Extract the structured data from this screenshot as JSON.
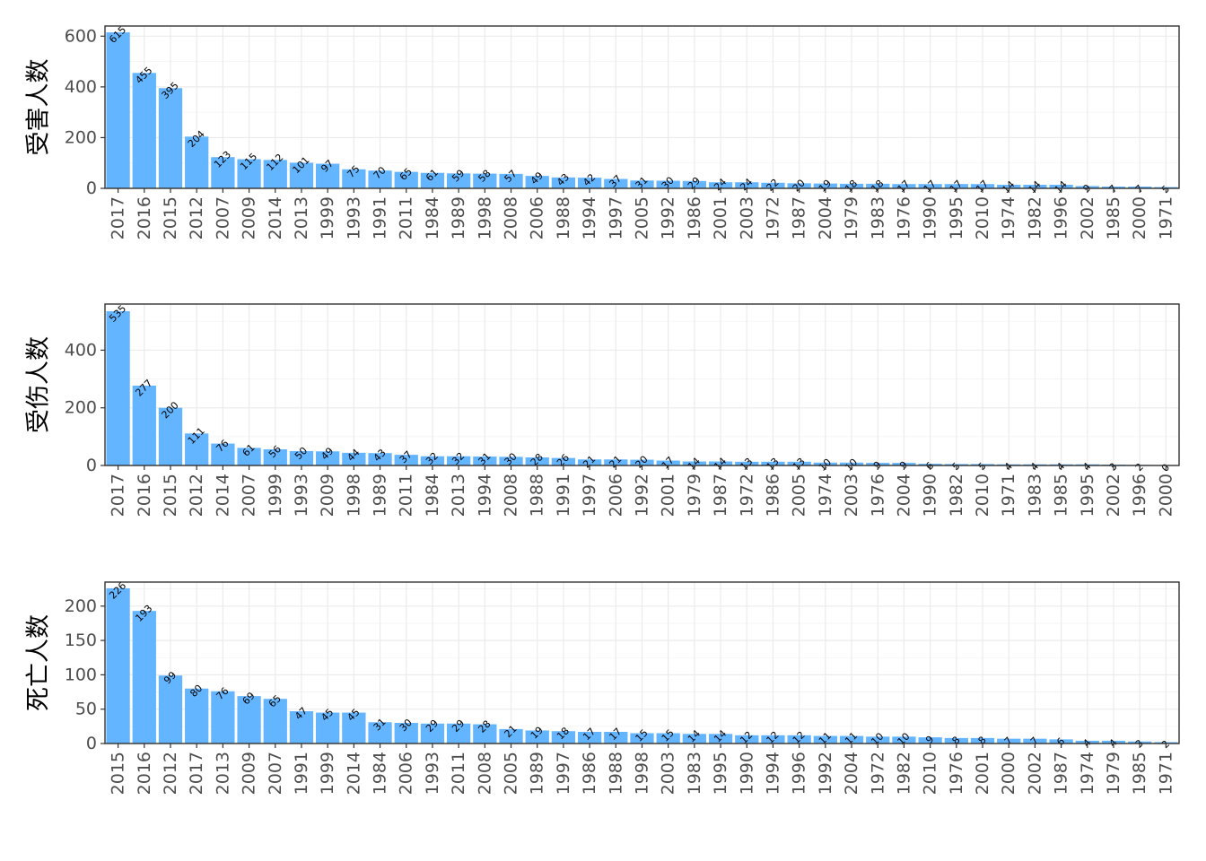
{
  "colors": {
    "bar": "#63b5ff",
    "grid": "#ebebeb",
    "border": "#333333"
  },
  "chart_data": [
    {
      "type": "bar",
      "ylabel": "受害人数",
      "ylim": [
        0,
        640
      ],
      "yticks": [
        0,
        200,
        400,
        600
      ],
      "grid": true,
      "categories": [
        "2017",
        "2016",
        "2015",
        "2012",
        "2007",
        "2009",
        "2014",
        "2013",
        "1999",
        "1993",
        "1991",
        "2011",
        "1984",
        "1989",
        "1998",
        "2008",
        "2006",
        "1988",
        "1994",
        "1997",
        "2005",
        "1992",
        "1986",
        "2001",
        "2003",
        "1972",
        "1987",
        "2004",
        "1979",
        "1983",
        "1976",
        "1990",
        "1995",
        "2010",
        "1974",
        "1982",
        "1996",
        "2002",
        "1985",
        "2000",
        "1971"
      ],
      "values": [
        615,
        455,
        395,
        204,
        123,
        115,
        112,
        101,
        97,
        75,
        70,
        65,
        61,
        59,
        58,
        57,
        49,
        43,
        42,
        37,
        31,
        30,
        29,
        24,
        24,
        22,
        20,
        19,
        18,
        18,
        17,
        17,
        17,
        17,
        14,
        14,
        14,
        9,
        7,
        7,
        5
      ]
    },
    {
      "type": "bar",
      "ylabel": "受伤人数",
      "ylim": [
        0,
        560
      ],
      "yticks": [
        0,
        200,
        400
      ],
      "grid": true,
      "categories": [
        "2017",
        "2016",
        "2015",
        "2012",
        "2014",
        "2007",
        "1999",
        "1993",
        "2009",
        "1998",
        "1989",
        "2011",
        "1984",
        "2013",
        "1994",
        "2008",
        "1988",
        "1991",
        "1997",
        "2006",
        "1992",
        "2001",
        "1979",
        "1987",
        "1972",
        "1986",
        "2005",
        "1974",
        "2003",
        "1976",
        "2004",
        "1990",
        "1982",
        "2010",
        "1971",
        "1983",
        "1985",
        "1995",
        "2002",
        "1996",
        "2000"
      ],
      "values": [
        535,
        277,
        200,
        111,
        76,
        61,
        56,
        50,
        49,
        44,
        43,
        37,
        32,
        32,
        31,
        30,
        28,
        26,
        21,
        21,
        20,
        17,
        14,
        14,
        13,
        13,
        13,
        10,
        10,
        9,
        9,
        6,
        5,
        5,
        4,
        4,
        4,
        4,
        3,
        2,
        0
      ]
    },
    {
      "type": "bar",
      "ylabel": "死亡人数",
      "ylim": [
        0,
        235
      ],
      "yticks": [
        0,
        50,
        100,
        150,
        200
      ],
      "grid": true,
      "categories": [
        "2015",
        "2016",
        "2012",
        "2017",
        "2013",
        "2009",
        "2007",
        "1991",
        "1999",
        "2014",
        "1984",
        "2006",
        "1993",
        "2011",
        "2008",
        "2005",
        "1989",
        "1997",
        "1986",
        "1988",
        "1998",
        "2003",
        "1983",
        "1995",
        "1990",
        "1994",
        "1996",
        "1992",
        "2004",
        "1972",
        "1982",
        "2010",
        "1976",
        "2001",
        "2000",
        "2002",
        "1987",
        "1974",
        "1979",
        "1985",
        "1971"
      ],
      "values": [
        226,
        193,
        99,
        80,
        76,
        69,
        65,
        47,
        45,
        45,
        31,
        30,
        29,
        29,
        28,
        21,
        19,
        18,
        17,
        17,
        15,
        15,
        14,
        14,
        12,
        12,
        12,
        11,
        11,
        10,
        10,
        9,
        8,
        8,
        7,
        7,
        6,
        4,
        4,
        3,
        2
      ]
    }
  ]
}
